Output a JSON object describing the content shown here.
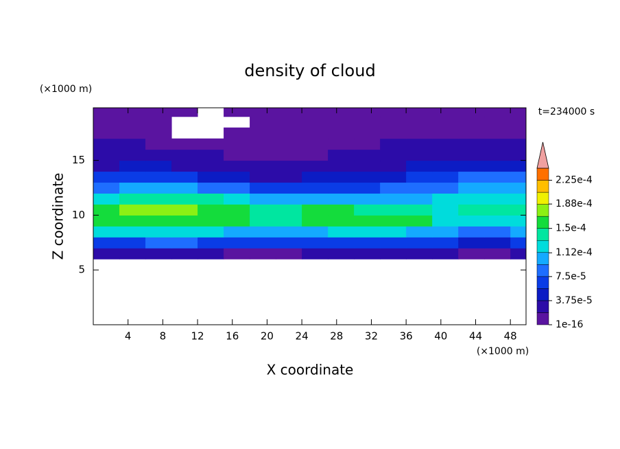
{
  "chart_data": {
    "type": "contour",
    "title": "density of cloud",
    "xlabel": "X coordinate",
    "ylabel": "Z coordinate",
    "x_unit": "(×1000 m)",
    "y_unit": "(×1000 m)",
    "time_label": "t=234000 s",
    "xlim": [
      0,
      49.8
    ],
    "ylim": [
      0,
      19.8
    ],
    "xticks": [
      4,
      8,
      12,
      16,
      20,
      24,
      28,
      32,
      36,
      40,
      44,
      48
    ],
    "yticks": [
      5,
      10,
      15
    ],
    "x": [
      1.5,
      4.5,
      7.5,
      10.5,
      13.5,
      16.5,
      19.5,
      22.5,
      25.5,
      28.5,
      31.5,
      34.5,
      37.5,
      40.5,
      43.5,
      46.5,
      49.5
    ],
    "y": [
      6.5,
      7.5,
      8.5,
      9.5,
      10.5,
      11.5,
      12.5,
      13.5,
      14.5,
      15.5,
      16.5,
      17.5,
      18.5,
      19.5
    ],
    "values": [
      [
        2e-05,
        2e-05,
        2.2e-05,
        2.2e-05,
        2e-05,
        1.8e-05,
        1.8e-05,
        1.8e-05,
        2e-05,
        2e-05,
        2e-05,
        2e-05,
        2e-05,
        2e-05,
        8e-06,
        1e-05,
        2e-05
      ],
      [
        6.5e-05,
        7e-05,
        7.5e-05,
        7.5e-05,
        7e-05,
        6.5e-05,
        6e-05,
        6e-05,
        6.5e-05,
        7e-05,
        7e-05,
        7e-05,
        7e-05,
        6e-05,
        4e-05,
        5e-05,
        6e-05
      ],
      [
        0.000115,
        0.00012,
        0.000125,
        0.000125,
        0.00012,
        0.00011,
        0.000105,
        0.000105,
        0.00011,
        0.000115,
        0.000115,
        0.000115,
        0.00011,
        9.5e-05,
        8.5e-05,
        9e-05,
        0.0001
      ],
      [
        0.000155,
        0.00016,
        0.000165,
        0.000165,
        0.00016,
        0.00015,
        0.000145,
        0.000145,
        0.00015,
        0.000155,
        0.000155,
        0.000155,
        0.00015,
        0.00012,
        0.000115,
        0.00012,
        0.00013
      ],
      [
        0.00016,
        0.00017,
        0.000175,
        0.00017,
        0.000165,
        0.00015,
        0.000145,
        0.000145,
        0.00015,
        0.00015,
        0.000145,
        0.000145,
        0.000135,
        0.000125,
        0.00014,
        0.00014,
        0.000135
      ],
      [
        0.00013,
        0.00014,
        0.000145,
        0.00014,
        0.000135,
        0.00012,
        0.00011,
        0.000105,
        0.000105,
        0.0001,
        0.0001,
        0.0001,
        0.000105,
        0.000115,
        0.00013,
        0.00013,
        0.00012
      ],
      [
        9e-05,
        0.0001,
        0.000105,
        0.0001,
        9e-05,
        7.5e-05,
        6.5e-05,
        6e-05,
        6e-05,
        6.5e-05,
        7e-05,
        7.5e-05,
        8e-05,
        9e-05,
        0.000105,
        0.000105,
        0.0001
      ],
      [
        6e-05,
        6.5e-05,
        7e-05,
        6.5e-05,
        5.5e-05,
        4e-05,
        3.5e-05,
        3.5e-05,
        4e-05,
        4.5e-05,
        5e-05,
        5.5e-05,
        6e-05,
        6.5e-05,
        8e-05,
        8e-05,
        7.5e-05
      ],
      [
        3.5e-05,
        3.8e-05,
        4e-05,
        3.5e-05,
        3e-05,
        2.5e-05,
        2.2e-05,
        2.2e-05,
        2.5e-05,
        3e-05,
        3.2e-05,
        3.5e-05,
        4e-05,
        4.5e-05,
        5e-05,
        5e-05,
        4.5e-05
      ],
      [
        2.5e-05,
        2.6e-05,
        2.6e-05,
        2.2e-05,
        1.9e-05,
        1.6e-05,
        1.5e-05,
        1.5e-05,
        1.7e-05,
        2e-05,
        2.2e-05,
        2.4e-05,
        2.6e-05,
        2.8e-05,
        3e-05,
        3e-05,
        2.8e-05
      ],
      [
        1.9e-05,
        1.9e-05,
        1.7e-05,
        1.2e-05,
        8e-06,
        6e-06,
        5e-06,
        6e-06,
        8e-06,
        1.2e-05,
        1.6e-05,
        1.9e-05,
        2e-05,
        2e-05,
        2e-05,
        2e-05,
        1.9e-05
      ],
      [
        8e-06,
        6e-06,
        4e-06,
        null,
        null,
        2e-06,
        3e-06,
        3e-06,
        4e-06,
        5e-06,
        6e-06,
        8e-06,
        1e-05,
        1e-05,
        9e-06,
        9e-06,
        8e-06
      ],
      [
        2e-06,
        2e-06,
        1e-06,
        null,
        null,
        null,
        1e-06,
        1e-06,
        1e-06,
        1e-06,
        1e-06,
        1e-06,
        2e-06,
        2e-06,
        2e-06,
        1e-06,
        1e-06
      ],
      [
        1e-07,
        1e-07,
        1e-07,
        1e-07,
        null,
        1e-07,
        1e-07,
        1e-07,
        1e-07,
        1e-07,
        1e-07,
        1e-07,
        1e-07,
        1e-07,
        1e-07,
        1e-07,
        1e-07
      ]
    ],
    "colorbar": {
      "levels": [
        1e-16,
        1.875e-05,
        3.75e-05,
        5.625e-05,
        7.5e-05,
        9.375e-05,
        0.0001125,
        0.00013125,
        0.00015,
        0.00016875,
        0.0001875,
        0.00020625,
        0.000225,
        0.00024375
      ],
      "colors": [
        "#5a14a0",
        "#2c0ca8",
        "#0c1cc4",
        "#0a3ce6",
        "#1e6eff",
        "#14aaff",
        "#00dcdc",
        "#00e6a0",
        "#14dc3c",
        "#8cf014",
        "#f0f000",
        "#ffbe00",
        "#ff7000"
      ],
      "extend_color": "#f0a0a0",
      "ticks": [
        {
          "value": 1e-16,
          "label": "1e-16"
        },
        {
          "value": 3.75e-05,
          "label": "3.75e-5"
        },
        {
          "value": 7.5e-05,
          "label": "7.5e-5"
        },
        {
          "value": 0.000112,
          "label": "1.12e-4"
        },
        {
          "value": 0.00015,
          "label": "1.5e-4"
        },
        {
          "value": 0.000188,
          "label": "1.88e-4"
        },
        {
          "value": 0.000225,
          "label": "2.25e-4"
        }
      ]
    }
  }
}
